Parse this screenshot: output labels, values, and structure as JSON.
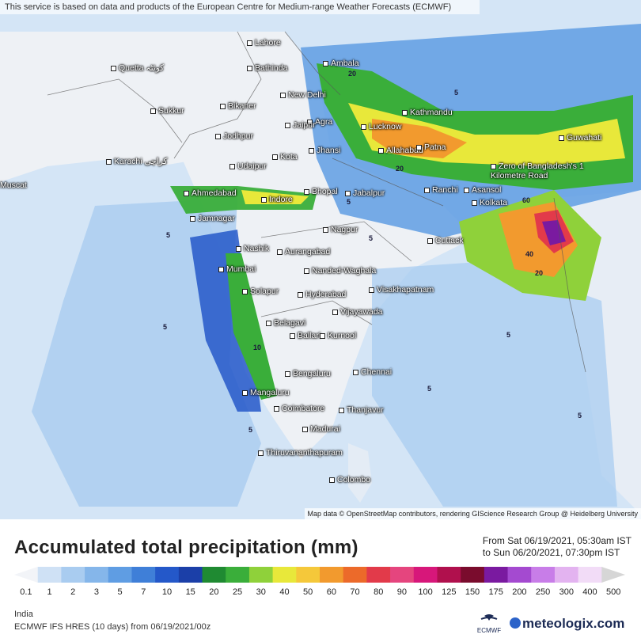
{
  "banner": "This service is based on data and products of the European Centre for Medium-range Weather Forecasts (ECMWF)",
  "attribution": "Map data © OpenStreetMap contributors, rendering GIScience Research Group @ Heidelberg University",
  "cities": [
    {
      "name": "Lahore"
    },
    {
      "name": "Bathinda"
    },
    {
      "name": "Quetta کوئٹہ"
    },
    {
      "name": "Ambala"
    },
    {
      "name": "New Delhi"
    },
    {
      "name": "Bikaner"
    },
    {
      "name": "Sukkur"
    },
    {
      "name": "Agra"
    },
    {
      "name": "Jaipur"
    },
    {
      "name": "Kathmandu"
    },
    {
      "name": "Lucknow"
    },
    {
      "name": "Jodhpur"
    },
    {
      "name": "Allahabad"
    },
    {
      "name": "Patna"
    },
    {
      "name": "Guwahati"
    },
    {
      "name": "Jhansi"
    },
    {
      "name": "Kota"
    },
    {
      "name": "Karachi کراچی"
    },
    {
      "name": "Udaipur"
    },
    {
      "name": "Zero of Bangladesh's 1 Kilometre Road"
    },
    {
      "name": "Ahmedabad"
    },
    {
      "name": "Indore"
    },
    {
      "name": "Bhopal"
    },
    {
      "name": "Jabalpur"
    },
    {
      "name": "Ranchi"
    },
    {
      "name": "Asansol"
    },
    {
      "name": "Kolkata"
    },
    {
      "name": "Jamnagar"
    },
    {
      "name": "Nagpur"
    },
    {
      "name": "Cuttack"
    },
    {
      "name": "Nashik"
    },
    {
      "name": "Aurangabad"
    },
    {
      "name": "Mumbai"
    },
    {
      "name": "Nanded-Waghala"
    },
    {
      "name": "Solapur"
    },
    {
      "name": "Hyderabad"
    },
    {
      "name": "Visakhapatnam"
    },
    {
      "name": "Vijayawada"
    },
    {
      "name": "Belagavi"
    },
    {
      "name": "Ballari"
    },
    {
      "name": "Kurnool"
    },
    {
      "name": "Bengaluru"
    },
    {
      "name": "Chennai"
    },
    {
      "name": "Mangaluru"
    },
    {
      "name": "Coimbatore"
    },
    {
      "name": "Thanjavur"
    },
    {
      "name": "Madurai"
    },
    {
      "name": "Thiruvananthapuram"
    },
    {
      "name": "Colombo"
    },
    {
      "name": "Muscat"
    }
  ],
  "contour_labels": [
    "5",
    "5",
    "5",
    "5",
    "5",
    "5",
    "10",
    "20",
    "20",
    "40",
    "60",
    "20",
    "5",
    "5",
    "5"
  ],
  "legend": {
    "title": "Accumulated total precipitation (mm)",
    "from": "From Sat 06/19/2021, 05:30am IST",
    "to": "to Sun 06/20/2021, 07:30pm IST",
    "tick_labels": [
      "0.1",
      "1",
      "2",
      "3",
      "5",
      "7",
      "10",
      "15",
      "20",
      "25",
      "30",
      "40",
      "50",
      "60",
      "70",
      "80",
      "90",
      "100",
      "125",
      "150",
      "175",
      "200",
      "250",
      "300",
      "400",
      "500"
    ],
    "colors": [
      "#f2f4f8",
      "#cfe1f5",
      "#a9ccf0",
      "#85b6ea",
      "#5f9de3",
      "#3f7fd8",
      "#2458c9",
      "#1b3fa8",
      "#1f8a32",
      "#3aae3a",
      "#8fd13a",
      "#e8e83a",
      "#f5c83a",
      "#f29a2e",
      "#ec6a2a",
      "#e23a4a",
      "#e5457e",
      "#d7177a",
      "#b0104d",
      "#7a0c2d",
      "#7a1aa0",
      "#a44ad0",
      "#c87de8",
      "#e3b3f0",
      "#f2dcf7",
      "#d6d6d6"
    ]
  },
  "footer": {
    "region": "India",
    "model": "ECMWF IFS HRES (10 days) from 06/19/2021/00z",
    "logo_text": "ECMWF",
    "brand": "meteologix.com"
  },
  "colors": {
    "land": "#e9eef5",
    "sea": "#cfe3f5",
    "title": "#222222",
    "brand": "#1c2b55"
  }
}
